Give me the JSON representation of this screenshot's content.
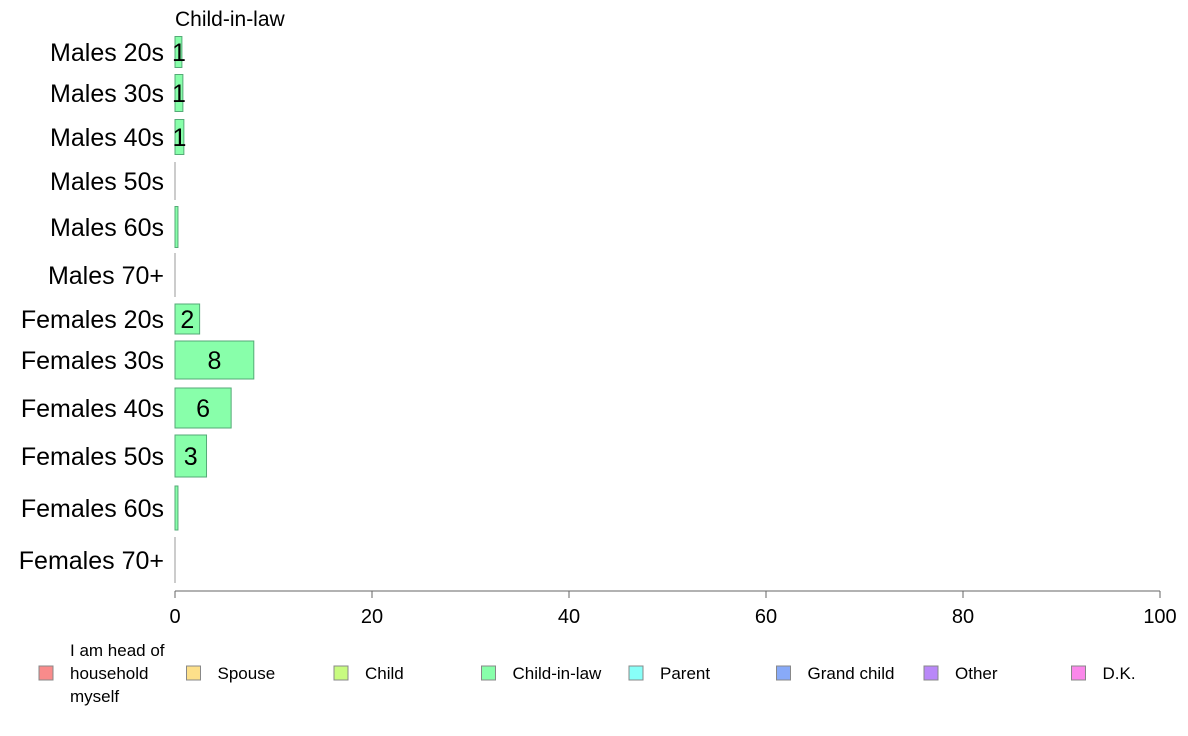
{
  "chart_data": {
    "type": "bar",
    "orientation": "horizontal",
    "title": "Child-in-law",
    "categories": [
      "Males 20s",
      "Males 30s",
      "Males 40s",
      "Males 50s",
      "Males 60s",
      "Males 70+",
      "Females 20s",
      "Females 30s",
      "Females 40s",
      "Females 50s",
      "Females 60s",
      "Females 70+"
    ],
    "series": [
      {
        "name": "Child-in-law",
        "color": "#88ffaa",
        "values": [
          0.7,
          0.8,
          0.9,
          0,
          0.3,
          0,
          2.5,
          8.0,
          5.7,
          3.2,
          0.3,
          0
        ],
        "labels": [
          "1",
          "1",
          "1",
          "",
          "",
          "",
          "2",
          "8",
          "6",
          "3",
          "",
          ""
        ]
      }
    ],
    "xlim": [
      0,
      100
    ],
    "xticks": [
      "0",
      "20",
      "40",
      "60",
      "80",
      "100"
    ],
    "xlabel": "",
    "ylabel": "",
    "grid": false,
    "legend_position": "bottom",
    "legend": [
      {
        "label": "I am head of\nhousehold\nmyself",
        "color": "#f98b8b"
      },
      {
        "label": "Spouse",
        "color": "#fde08a"
      },
      {
        "label": "Child",
        "color": "#c8fb80"
      },
      {
        "label": "Child-in-law",
        "color": "#88ffaa"
      },
      {
        "label": "Parent",
        "color": "#88fff8"
      },
      {
        "label": "Grand child",
        "color": "#88aaf8"
      },
      {
        "label": "Other",
        "color": "#b988f8"
      },
      {
        "label": "D.K.",
        "color": "#fa88ea"
      }
    ]
  }
}
